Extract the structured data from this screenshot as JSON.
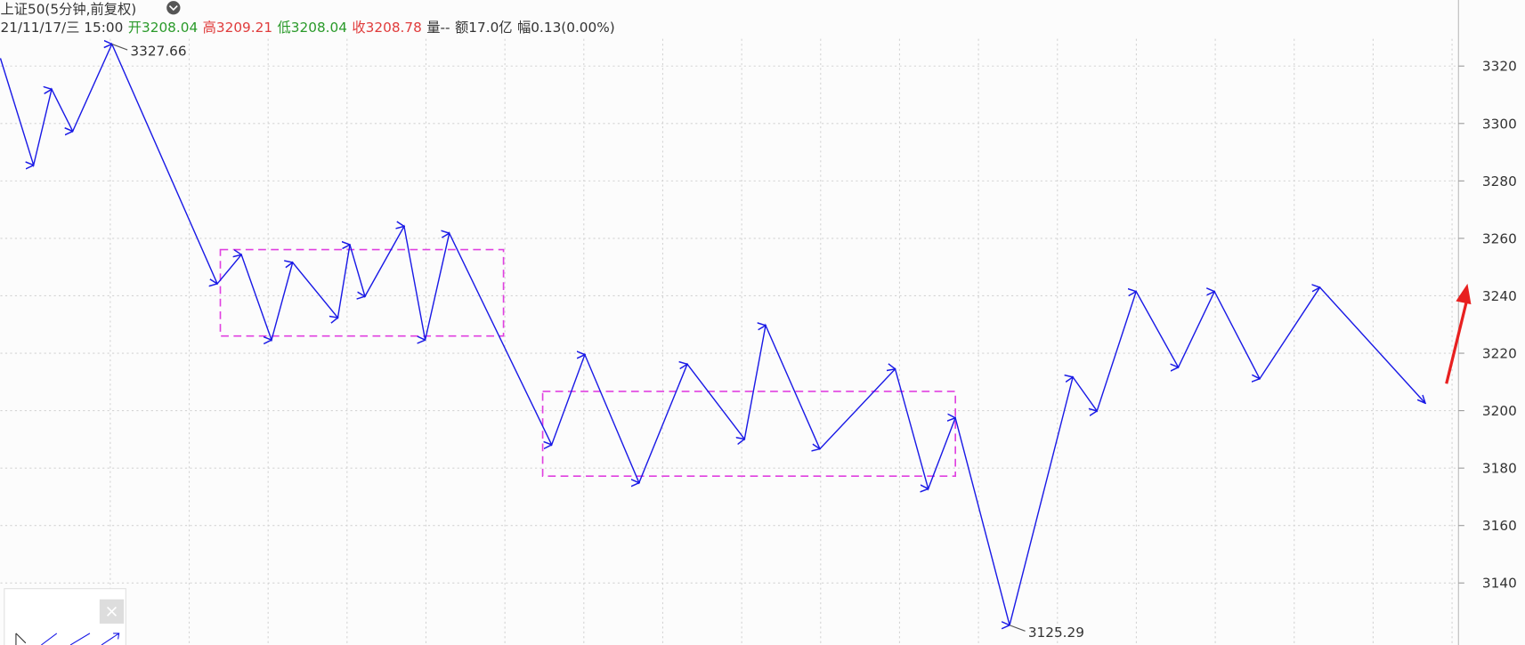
{
  "chart_data": {
    "type": "zigzag",
    "title": "上证50(5分钟,前复权)",
    "info": [
      {
        "text": "21/11/17/三 15:00"
      },
      {
        "label": "开",
        "value": 3208.04,
        "color": "#2a9a2a"
      },
      {
        "label": "高",
        "value": 3209.21,
        "color": "#e03c3c"
      },
      {
        "label": "低",
        "value": 3208.04,
        "color": "#2a9a2a"
      },
      {
        "label": "收",
        "value": 3208.78,
        "color": "#e03c3c"
      },
      {
        "text": "量--"
      },
      {
        "text": "额17.0亿"
      },
      {
        "text": "幅0.13(0.00%)"
      }
    ],
    "x": [
      0,
      11,
      17,
      24,
      37,
      72,
      80,
      90,
      97,
      112,
      116,
      121,
      134,
      141,
      149,
      183,
      194,
      212,
      228,
      247,
      254,
      272,
      297,
      308,
      317,
      335,
      356,
      364,
      377,
      391,
      403,
      418,
      438,
      473
    ],
    "values": [
      3322.7,
      3285.5,
      3311.9,
      3297.3,
      3327.66,
      3244.2,
      3254.3,
      3224.6,
      3251.6,
      3232.4,
      3257.8,
      3239.8,
      3264.2,
      3224.6,
      3261.8,
      3188.1,
      3219.5,
      3174.9,
      3216.2,
      3190.1,
      3229.7,
      3186.7,
      3214.5,
      3172.8,
      3197.5,
      3125.29,
      3211.7,
      3199.9,
      3241.5,
      3215.1,
      3241.5,
      3211.1,
      3242.9,
      3202.6
    ],
    "color": "#1a1ae6",
    "annotations": [
      {
        "x": 37,
        "value": 3327.66
      },
      {
        "x": 335,
        "value": 3125.29
      }
    ],
    "boxes": [
      {
        "x": [
          73,
          167
        ],
        "y": [
          3256.1,
          3226.0
        ]
      },
      {
        "x": [
          180,
          317
        ],
        "y": [
          3206.7,
          3177.2
        ]
      }
    ],
    "box_color": "#e040e0",
    "arrow": {
      "x": [
        480,
        487
      ],
      "y": [
        3209.4,
        3244.2
      ],
      "color": "#e82020"
    },
    "xlim": [
      0,
      484
    ],
    "ylim": [
      3118.4,
      3343.0
    ],
    "yticks": [
      3140,
      3160,
      3180,
      3200,
      3220,
      3240,
      3260,
      3280,
      3300,
      3320
    ],
    "grid": true
  }
}
